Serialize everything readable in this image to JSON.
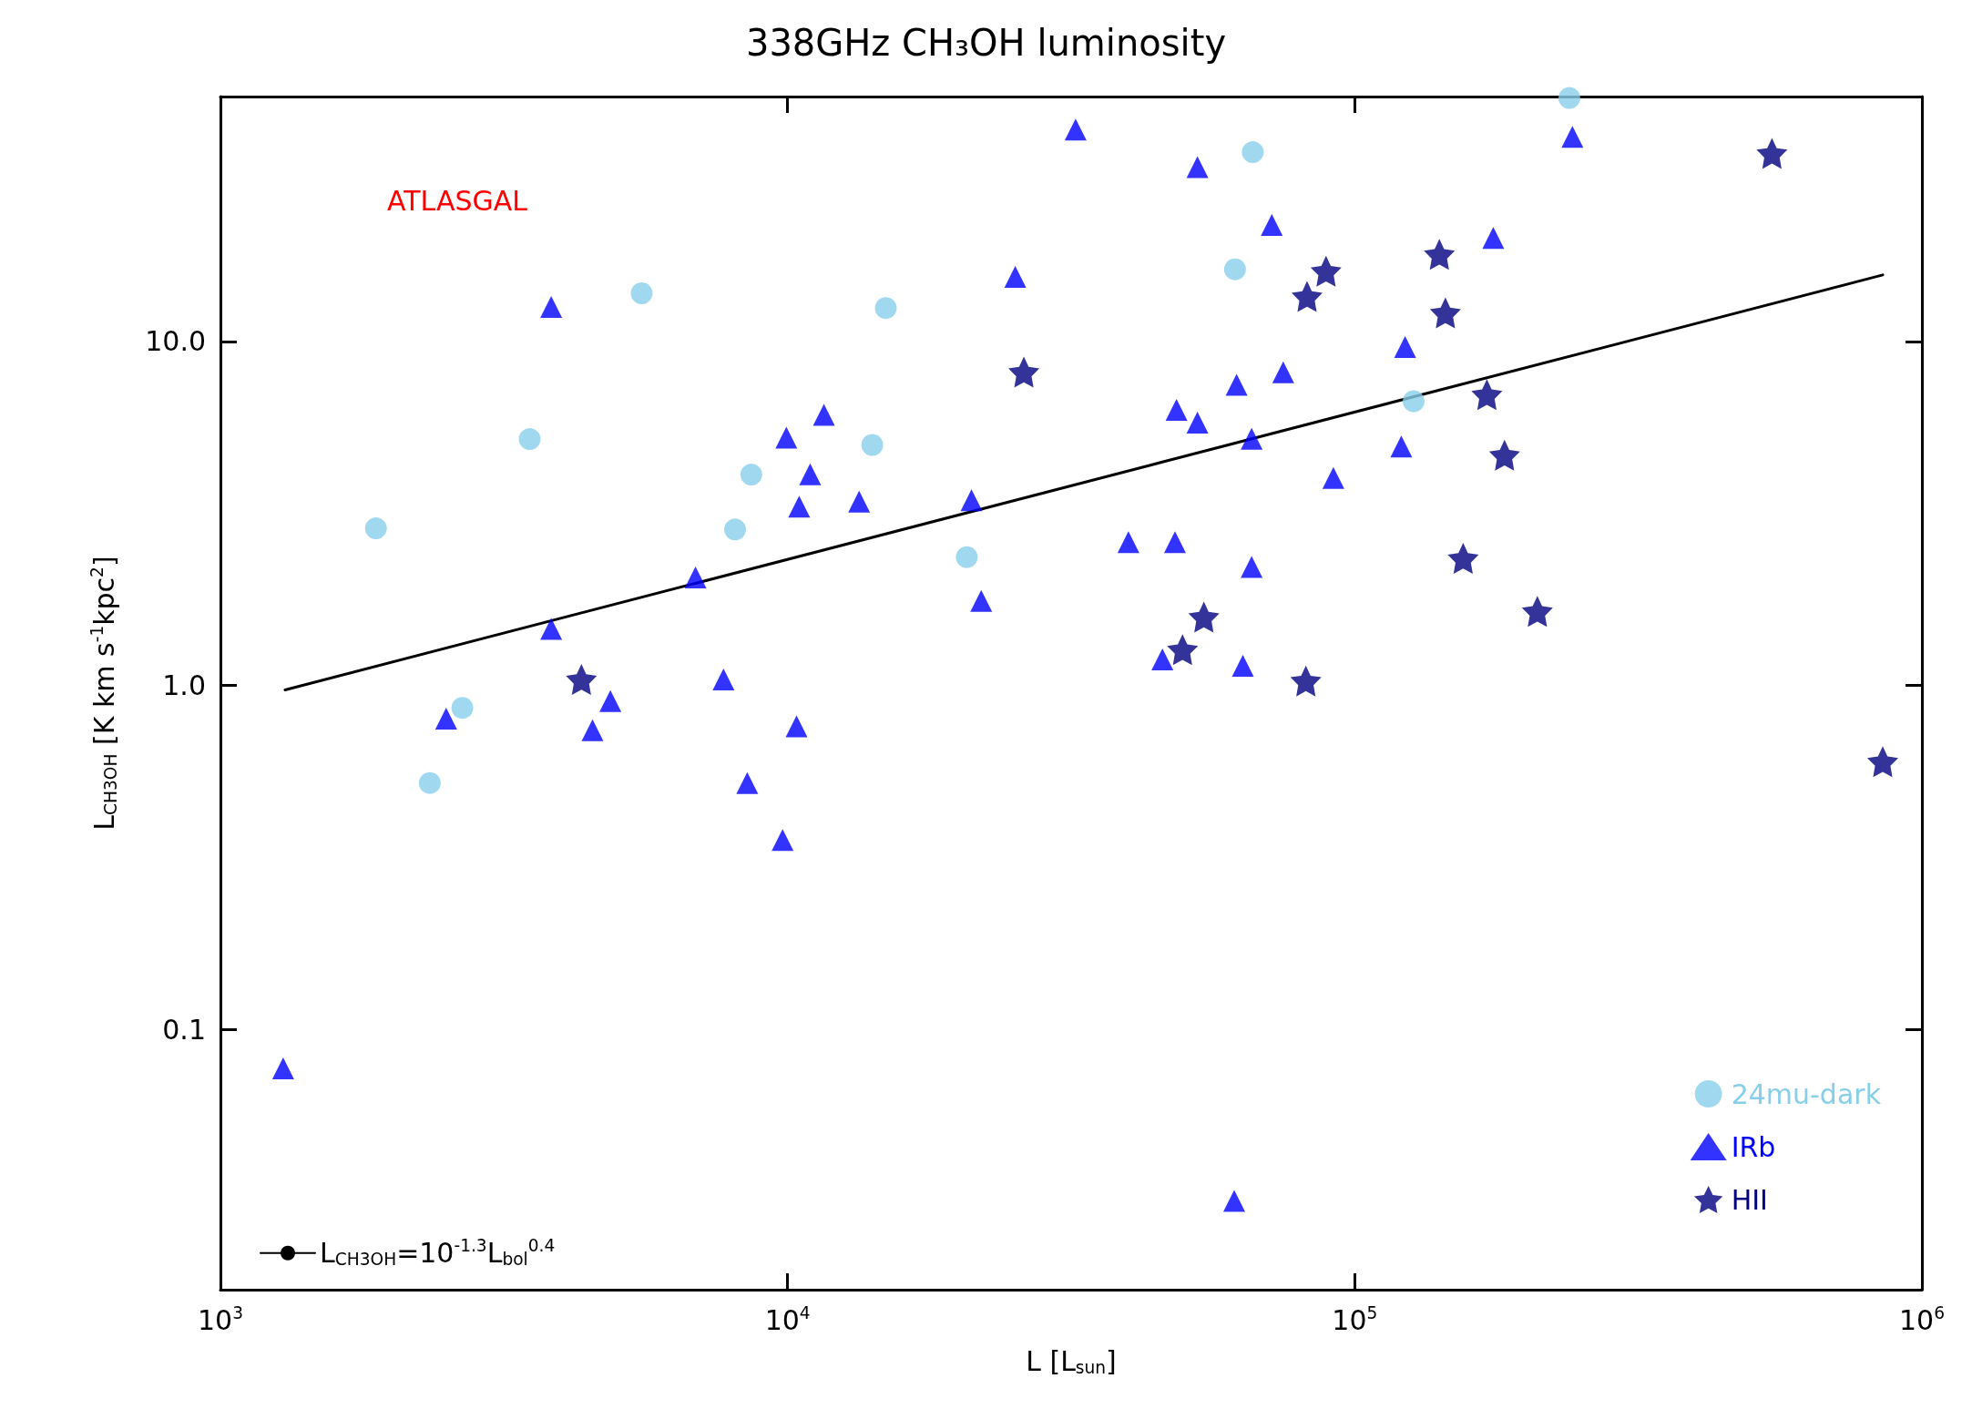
{
  "chart_data": {
    "type": "scatter",
    "title": "338GHz CH₃OH luminosity",
    "xlabel": "L [L$_{sun}$]",
    "ylabel": "L$_{CH3OH}$ [K km s$^{-1}$kpc$^{2}$]",
    "log": "xy",
    "xlim": [
      1000,
      1000000
    ],
    "ylim": [
      0.0175,
      51.5
    ],
    "xticks": [
      {
        "value": 1000,
        "label": "10$^{3}$"
      },
      {
        "value": 10000,
        "label": "10$^{4}$"
      },
      {
        "value": 100000,
        "label": "10$^{5}$"
      },
      {
        "value": 1000000,
        "label": "10$^{6}$"
      }
    ],
    "yticks": [
      0.1,
      {
        "value": 1,
        "label": "1.0"
      },
      {
        "value": 10,
        "label": "10.0"
      }
    ],
    "grid": false,
    "legend": "bottom right",
    "annotations": [
      "ATLASGAL"
    ],
    "series": [
      {
        "name": "24mu-dark",
        "color": "#87ceeb",
        "marker": "circle",
        "x": [
          1880,
          2340,
          2670,
          3510,
          5530,
          8630,
          8080,
          14100,
          14900,
          20700,
          61500,
          66100,
          127000,
          239000
        ],
        "values": [
          2.86,
          0.52,
          0.86,
          5.2,
          13.8,
          4.1,
          2.84,
          5.0,
          12.5,
          2.36,
          16.2,
          35.5,
          6.7,
          51
        ]
      },
      {
        "name": "IRb",
        "color": "#0000ff",
        "marker": "triangle",
        "x": [
          1290,
          2500,
          3830,
          3830,
          4530,
          4870,
          6880,
          7710,
          8490,
          9800,
          9950,
          10370,
          10480,
          10960,
          11590,
          13370,
          21100,
          21950,
          25200,
          32200,
          39900,
          45800,
          48200,
          48500,
          52800,
          52800,
          61300,
          61900,
          63500,
          65800,
          65800,
          71400,
          74800,
          91700,
          120800,
          122700,
          175500,
          242000
        ],
        "values": [
          0.077,
          0.8,
          1.46,
          12.6,
          0.74,
          0.9,
          2.06,
          1.04,
          0.52,
          0.355,
          5.25,
          0.76,
          3.31,
          4.11,
          6.11,
          3.42,
          3.45,
          1.76,
          15.4,
          41.3,
          2.61,
          1.19,
          2.61,
          6.32,
          5.81,
          32.1,
          0.0317,
          7.48,
          1.14,
          2.21,
          5.21,
          21.8,
          8.13,
          4.01,
          4.95,
          9.63,
          20.0,
          39.3
        ]
      },
      {
        "name": "HII",
        "color": "#000080",
        "marker": "star",
        "x": [
          4330,
          26100,
          49700,
          54200,
          82000,
          82400,
          89000,
          141000,
          144500,
          155300,
          171000,
          183700,
          209900,
          544000,
          853000
        ],
        "values": [
          1.04,
          8.14,
          1.27,
          1.58,
          1.03,
          13.5,
          16.0,
          17.9,
          12.1,
          2.34,
          7.0,
          4.67,
          1.64,
          35.2,
          0.6
        ]
      },
      {
        "name": "L$_{CH3OH}$=10$^{-1.3}$L$_{bol}$$^{0.4}$",
        "type": "line",
        "color": "#000000",
        "marker": "none",
        "line_style": "solid",
        "x": [
          1300,
          853000
        ],
        "values": [
          0.97,
          15.6
        ]
      }
    ]
  }
}
